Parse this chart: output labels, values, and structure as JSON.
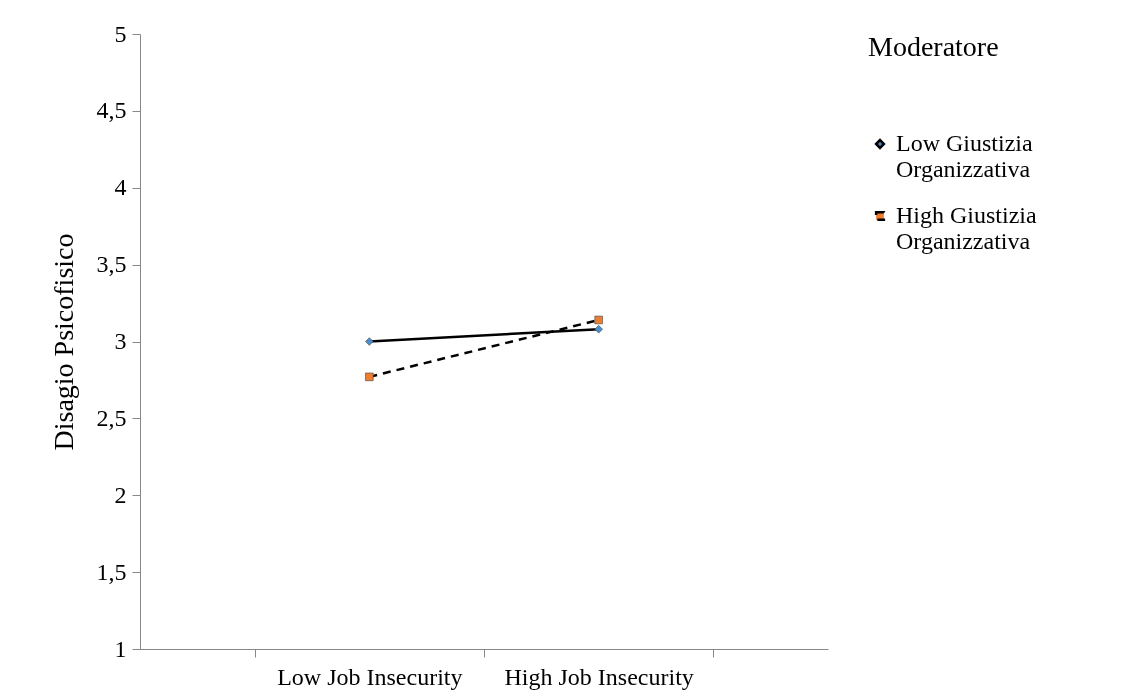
{
  "chart_data": {
    "type": "line",
    "ylabel": "Disagio  Psicofisico",
    "legend_title": "Moderatore",
    "categories": [
      "Low Job Insecurity",
      "High Job Insecurity"
    ],
    "series": [
      {
        "name": "Low Giustizia Organizzativa",
        "color": "#4a8ccc",
        "values": [
          3.0,
          3.08
        ],
        "marker": "diamond",
        "line_style": "solid"
      },
      {
        "name": "High Giustizia Organizzativa",
        "color": "#ed7d31",
        "values": [
          2.77,
          3.14
        ],
        "marker": "square",
        "line_style": "dashed"
      }
    ],
    "ylim": [
      1,
      5
    ],
    "yticks": [
      1,
      {
        "value": 1.5,
        "label": "1,5"
      },
      2,
      {
        "value": 2.5,
        "label": "2,5"
      },
      3,
      {
        "value": 3.5,
        "label": "3,5"
      },
      4,
      {
        "value": 4.5,
        "label": "4,5"
      },
      5
    ],
    "grid": false,
    "legend": "right"
  }
}
